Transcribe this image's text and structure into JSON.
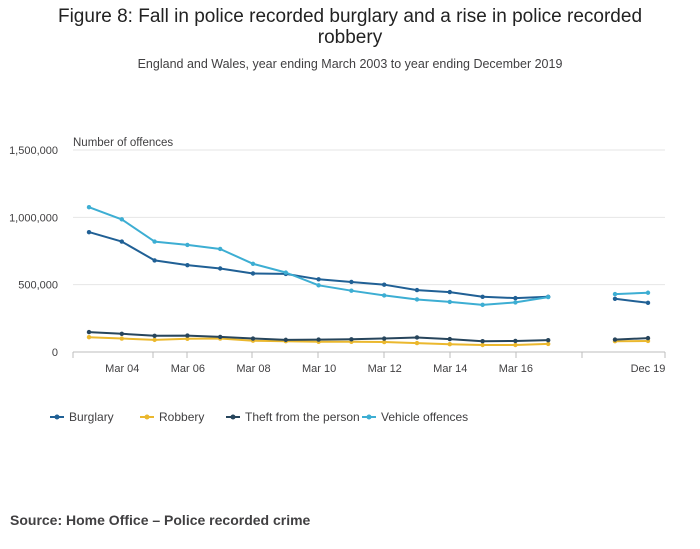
{
  "chart_data": {
    "type": "line",
    "title": "Figure 8: Fall in police recorded burglary and a rise in police recorded robbery",
    "subtitle": "England and Wales, year ending March 2003 to year ending December 2019",
    "ylabel": "Number of offences",
    "ylim": [
      0,
      1500000
    ],
    "y_ticks": [
      {
        "value": 0,
        "label": "0"
      },
      {
        "value": 500000,
        "label": "500,000"
      },
      {
        "value": 1000000,
        "label": "1,000,000"
      },
      {
        "value": 1500000,
        "label": "1,500,000"
      }
    ],
    "categories": [
      "Mar 03",
      "Mar 04",
      "Mar 05",
      "Mar 06",
      "Mar 07",
      "Mar 08",
      "Mar 09",
      "Mar 10",
      "Mar 11",
      "Mar 12",
      "Mar 13",
      "Mar 14",
      "Mar 15",
      "Mar 16",
      "Mar 17",
      "Mar 18",
      "Dec 18",
      "Dec 19"
    ],
    "x_tick_labels": [
      {
        "index": 1,
        "label": "Mar 04"
      },
      {
        "index": 3,
        "label": "Mar 06"
      },
      {
        "index": 5,
        "label": "Mar 08"
      },
      {
        "index": 7,
        "label": "Mar 10"
      },
      {
        "index": 9,
        "label": "Mar 12"
      },
      {
        "index": 11,
        "label": "Mar 14"
      },
      {
        "index": 13,
        "label": "Mar 16"
      },
      {
        "index": 17,
        "label": "Dec 19"
      }
    ],
    "series": [
      {
        "name": "Burglary",
        "color": "#206095",
        "values": [
          890000,
          820000,
          680000,
          645000,
          620000,
          583000,
          580000,
          540000,
          520000,
          500000,
          460000,
          445000,
          410000,
          400000,
          410000,
          null,
          395000,
          365000
        ]
      },
      {
        "name": "Robbery",
        "color": "#EBB82E",
        "values": [
          110000,
          100000,
          90000,
          98000,
          100000,
          84000,
          80000,
          76000,
          76000,
          74000,
          66000,
          58000,
          52000,
          52000,
          60000,
          null,
          80000,
          82000
        ]
      },
      {
        "name": "Theft from the person",
        "color": "#27455C",
        "values": [
          148000,
          135000,
          120000,
          122000,
          112000,
          100000,
          90000,
          92000,
          94000,
          100000,
          108000,
          96000,
          80000,
          82000,
          88000,
          null,
          92000,
          103000
        ]
      },
      {
        "name": "Vehicle offences",
        "color": "#3DAED3",
        "values": [
          1075000,
          985000,
          820000,
          795000,
          765000,
          655000,
          590000,
          495000,
          455000,
          420000,
          390000,
          372000,
          350000,
          368000,
          408000,
          null,
          430000,
          440000
        ]
      }
    ],
    "legend_position": "bottom",
    "grid": true
  },
  "source": "Source: Home Office – Police recorded crime"
}
